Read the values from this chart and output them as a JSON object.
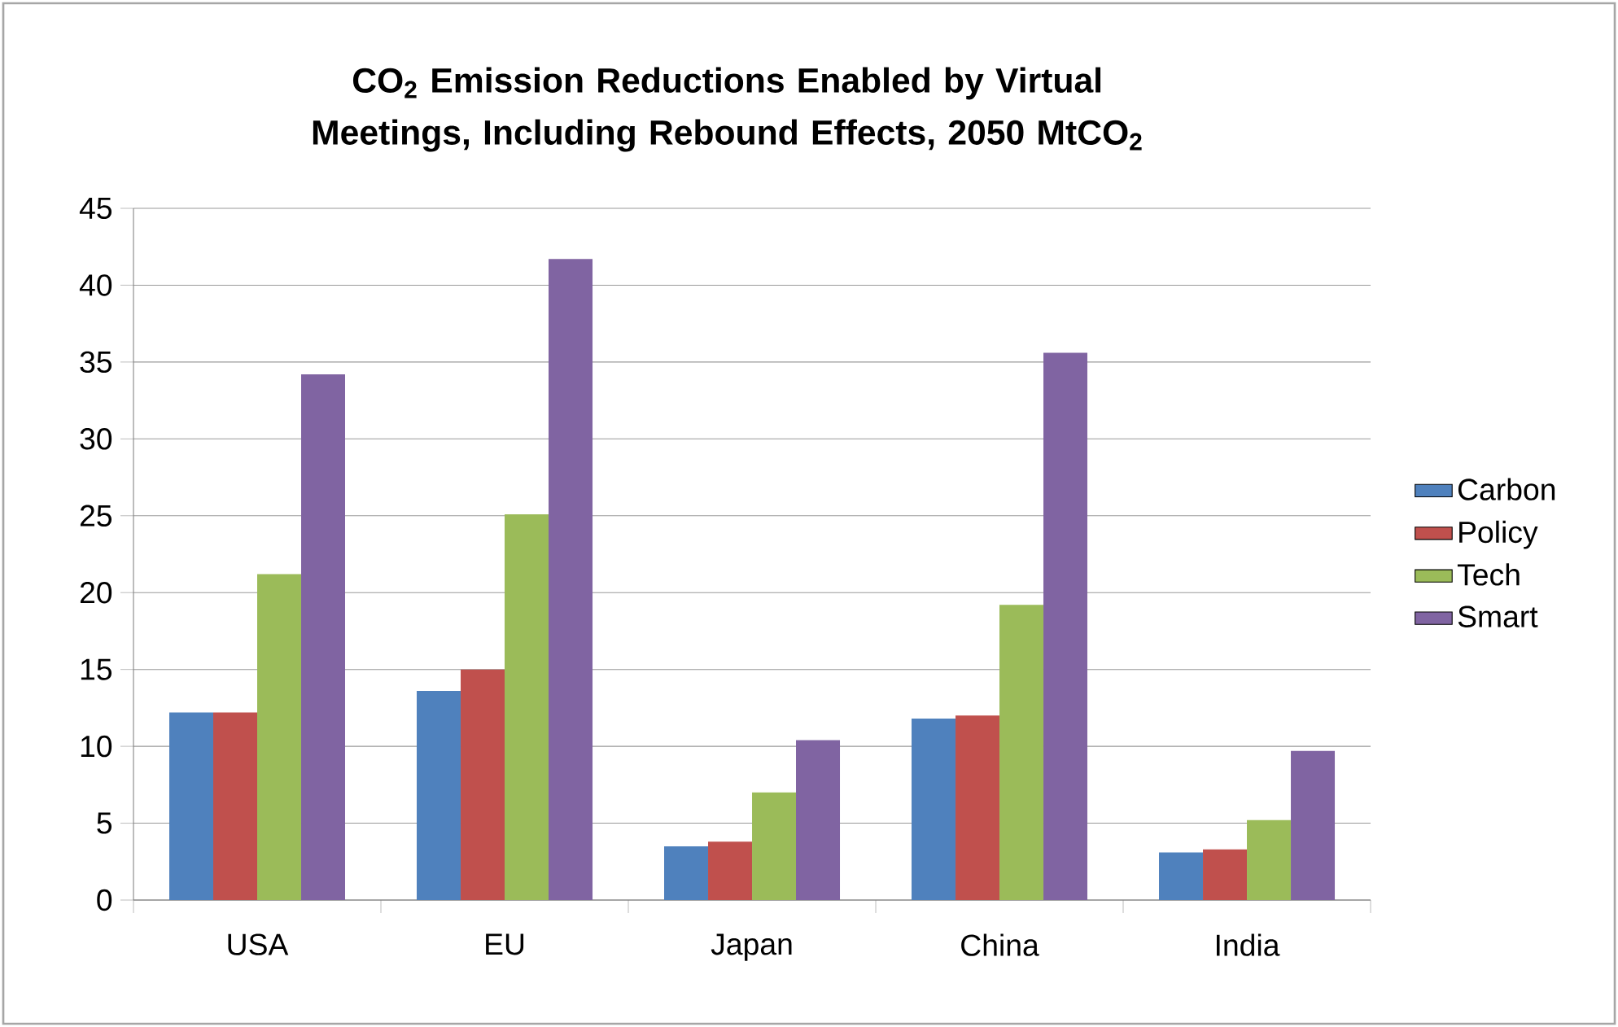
{
  "chart_data": {
    "type": "bar",
    "title": "CO$_{2}$ Emission Reductions Enabled by Virtual Meetings, Including Rebound Effects, 2050 MtCO$_{2}$",
    "categories": [
      "USA",
      "EU",
      "Japan",
      "China",
      "India"
    ],
    "series": [
      {
        "name": "Carbon",
        "color": "#4f81bd",
        "values": [
          12.2,
          13.6,
          3.5,
          11.8,
          3.1
        ]
      },
      {
        "name": "Policy",
        "color": "#c0504d",
        "values": [
          12.2,
          15.0,
          3.8,
          12.0,
          3.3
        ]
      },
      {
        "name": "Tech",
        "color": "#9bbb59",
        "values": [
          21.2,
          25.1,
          7.0,
          19.2,
          5.2
        ]
      },
      {
        "name": "Smart",
        "color": "#8064a2",
        "values": [
          34.2,
          41.7,
          10.4,
          35.6,
          9.7
        ]
      }
    ],
    "ylim": [
      0,
      45
    ],
    "yticks": [
      0,
      5,
      10,
      15,
      20,
      25,
      30,
      35,
      40,
      45
    ],
    "grid": "y",
    "legend": "right"
  }
}
